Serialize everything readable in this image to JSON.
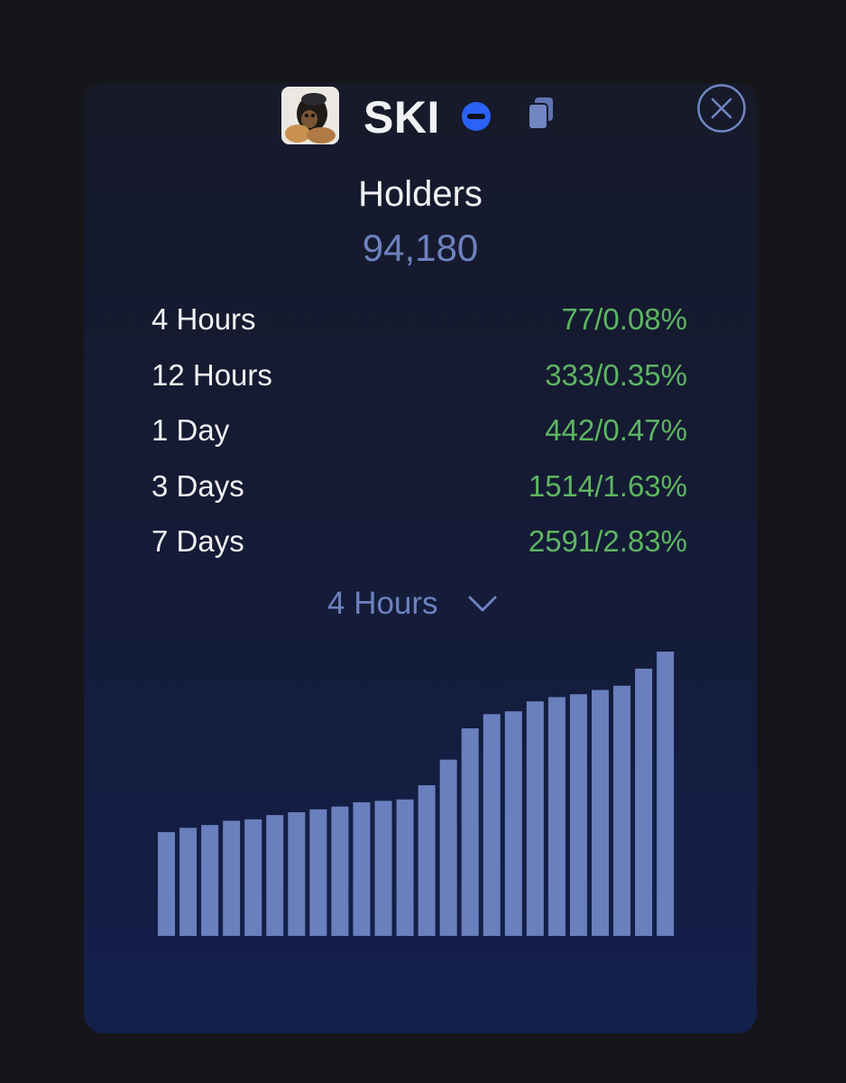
{
  "header": {
    "token_name": "SKI",
    "avatar_icon": "token-avatar-icon",
    "chain_icon": "chain-badge-icon",
    "copy_icon": "copy-icon",
    "close_icon": "close-icon"
  },
  "holders": {
    "title": "Holders",
    "count": "94,180"
  },
  "stats": [
    {
      "label": "4 Hours",
      "value": "77/0.08%"
    },
    {
      "label": "12 Hours",
      "value": "333/0.35%"
    },
    {
      "label": "1 Day",
      "value": "442/0.47%"
    },
    {
      "label": "3 Days",
      "value": "1514/1.63%"
    },
    {
      "label": "7 Days",
      "value": "2591/2.83%"
    }
  ],
  "period_select": {
    "selected": "4 Hours"
  },
  "colors": {
    "accent": "#6d82bf",
    "positive": "#5db661",
    "chain_blue": "#2a62f5",
    "bar": "#6a7fbd"
  },
  "chart_data": {
    "type": "bar",
    "title": "",
    "xlabel": "",
    "ylabel": "",
    "grid": false,
    "legend": "none",
    "values": [
      36.5,
      38,
      39,
      40.5,
      41,
      42.5,
      43.5,
      44.5,
      45.5,
      47,
      47.5,
      48,
      53,
      62,
      73,
      78,
      79,
      82.5,
      84,
      85,
      86.5,
      88,
      94,
      100
    ],
    "ylim": [
      0,
      100
    ]
  }
}
